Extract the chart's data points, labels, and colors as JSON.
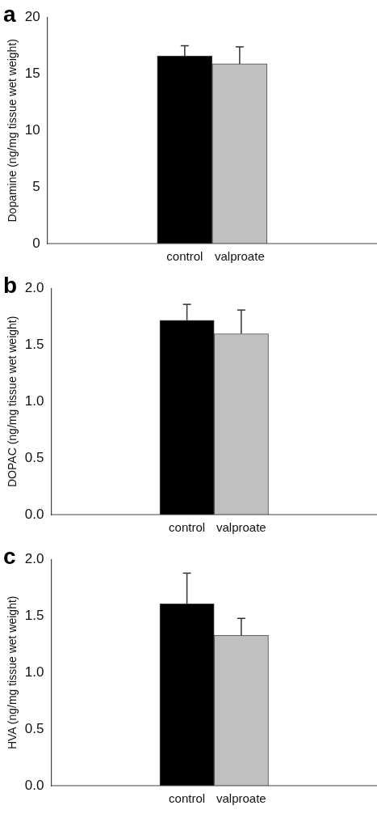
{
  "chart_data": [
    {
      "type": "bar",
      "title": "a",
      "ylabel": "Dopamine (ng/mg tissue wet weight)",
      "categories": [
        "control",
        "valproate"
      ],
      "values": [
        16.6,
        15.9
      ],
      "colors": [
        "#000000",
        "#c0c0c0"
      ],
      "errors": [
        [
          16.6,
          17.5
        ],
        [
          15.9,
          17.4
        ]
      ],
      "ylim": [
        0,
        20
      ],
      "yticks": [
        0,
        5,
        10,
        15,
        20
      ],
      "grid": false,
      "legend": false
    },
    {
      "type": "bar",
      "title": "b",
      "ylabel": "DOPAC (ng/mg tissue wet weight)",
      "categories": [
        "control",
        "valproate"
      ],
      "values": [
        1.72,
        1.6
      ],
      "colors": [
        "#000000",
        "#c0c0c0"
      ],
      "errors": [
        [
          1.72,
          1.86
        ],
        [
          1.6,
          1.81
        ]
      ],
      "ylim": [
        0,
        2
      ],
      "yticks": [
        {
          "value": 0,
          "label": "0.0"
        },
        {
          "value": 0.5,
          "label": "0.5"
        },
        {
          "value": 1,
          "label": "1.0"
        },
        {
          "value": 1.5,
          "label": "1.5"
        },
        {
          "value": 2,
          "label": "2.0"
        }
      ],
      "grid": false,
      "legend": false
    },
    {
      "type": "bar",
      "title": "c",
      "ylabel": "HVA (ng/mg tissue wet weight)",
      "categories": [
        "control",
        "valproate"
      ],
      "values": [
        1.61,
        1.33
      ],
      "colors": [
        "#000000",
        "#c0c0c0"
      ],
      "errors": [
        [
          1.61,
          1.88
        ],
        [
          1.33,
          1.48
        ]
      ],
      "ylim": [
        0,
        2
      ],
      "yticks": [
        {
          "value": 0,
          "label": "0.0"
        },
        {
          "value": 0.5,
          "label": "0.5"
        },
        {
          "value": 1,
          "label": "1.0"
        },
        {
          "value": 1.5,
          "label": "1.5"
        },
        {
          "value": 2,
          "label": "2.0"
        }
      ],
      "grid": false,
      "legend": false
    }
  ]
}
